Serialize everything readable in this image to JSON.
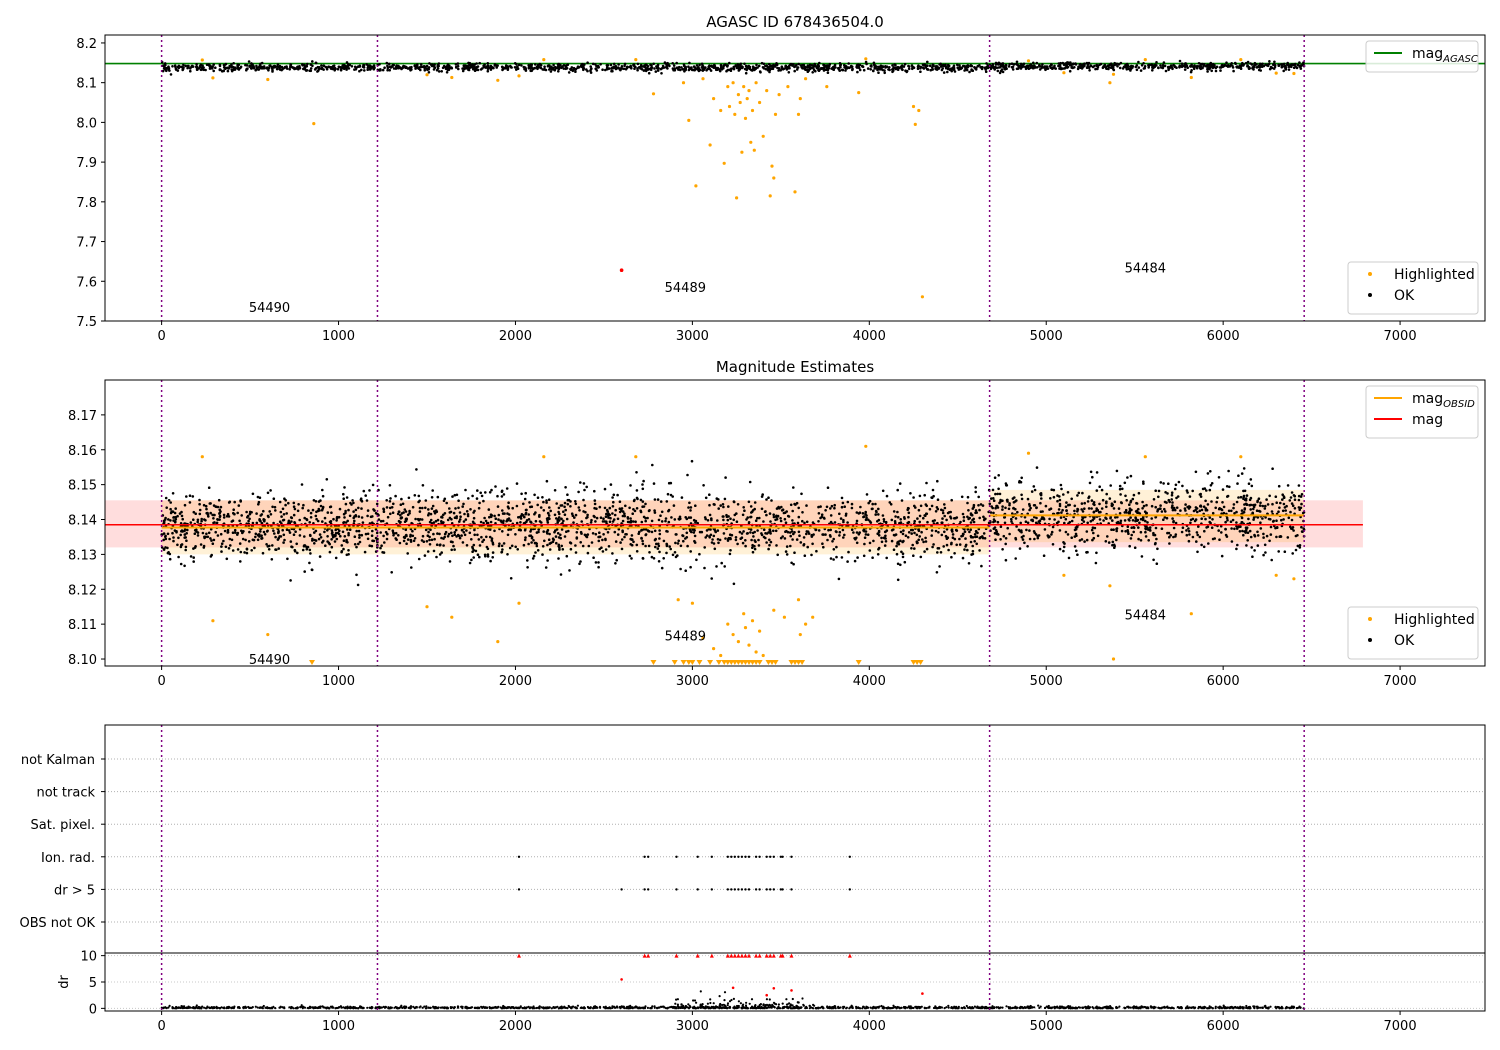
{
  "chart_data": [
    {
      "type": "scatter",
      "title": "AGASC ID 678436504.0",
      "xlabel": "",
      "ylabel": "",
      "xlim": [
        -320,
        7480
      ],
      "ylim": [
        7.5,
        8.22
      ],
      "xticks": [
        0,
        1000,
        2000,
        3000,
        4000,
        5000,
        6000,
        7000
      ],
      "yticks": [
        7.5,
        7.6,
        7.7,
        7.8,
        7.9,
        8.0,
        8.1,
        8.2
      ],
      "ytick_labels": [
        "7.5",
        "7.6",
        "7.7",
        "7.8",
        "7.9",
        "8.0",
        "8.1",
        "8.2"
      ],
      "obsid_boundaries": [
        0,
        1220,
        4680,
        6458
      ],
      "obsid_labels": [
        {
          "text": "54490",
          "x": 610,
          "y": 7.535
        },
        {
          "text": "54489",
          "x": 2960,
          "y": 7.585
        },
        {
          "text": "54484",
          "x": 5560,
          "y": 7.635
        }
      ],
      "lines": [
        {
          "name": "mag_AGASC",
          "color": "#008000",
          "x": [
            -320,
            7480
          ],
          "y": [
            8.148,
            8.148
          ]
        }
      ],
      "ok_band": {
        "segments": [
          {
            "x0": 0,
            "x1": 4680,
            "center": 8.138,
            "spread": 0.009
          },
          {
            "x0": 4680,
            "x1": 6458,
            "center": 8.141,
            "spread": 0.009
          }
        ]
      },
      "highlighted": [
        [
          230,
          8.157
        ],
        [
          290,
          8.112
        ],
        [
          600,
          8.108
        ],
        [
          860,
          7.997
        ],
        [
          1500,
          8.12
        ],
        [
          1640,
          8.113
        ],
        [
          1900,
          8.106
        ],
        [
          2020,
          8.117
        ],
        [
          2160,
          8.158
        ],
        [
          2600,
          7.628
        ],
        [
          2680,
          8.158
        ],
        [
          2780,
          8.072
        ],
        [
          2950,
          8.1
        ],
        [
          2980,
          8.005
        ],
        [
          3020,
          7.84
        ],
        [
          3060,
          8.11
        ],
        [
          3100,
          7.943
        ],
        [
          3120,
          8.06
        ],
        [
          3160,
          8.03
        ],
        [
          3180,
          7.897
        ],
        [
          3200,
          8.09
        ],
        [
          3210,
          8.04
        ],
        [
          3230,
          8.1
        ],
        [
          3240,
          8.02
        ],
        [
          3250,
          7.81
        ],
        [
          3260,
          8.07
        ],
        [
          3270,
          8.05
        ],
        [
          3280,
          7.925
        ],
        [
          3290,
          8.09
        ],
        [
          3300,
          8.01
        ],
        [
          3310,
          8.06
        ],
        [
          3320,
          8.08
        ],
        [
          3330,
          7.95
        ],
        [
          3340,
          8.03
        ],
        [
          3350,
          7.93
        ],
        [
          3360,
          8.1
        ],
        [
          3380,
          8.05
        ],
        [
          3400,
          7.965
        ],
        [
          3420,
          8.08
        ],
        [
          3440,
          7.815
        ],
        [
          3450,
          7.89
        ],
        [
          3460,
          7.86
        ],
        [
          3470,
          8.02
        ],
        [
          3490,
          8.07
        ],
        [
          3540,
          8.09
        ],
        [
          3580,
          7.825
        ],
        [
          3600,
          8.02
        ],
        [
          3610,
          8.06
        ],
        [
          3640,
          8.11
        ],
        [
          3760,
          8.09
        ],
        [
          3940,
          8.075
        ],
        [
          3980,
          8.16
        ],
        [
          4250,
          8.04
        ],
        [
          4260,
          7.995
        ],
        [
          4280,
          8.03
        ],
        [
          4300,
          7.561
        ],
        [
          4900,
          8.155
        ],
        [
          5100,
          8.125
        ],
        [
          5360,
          8.1
        ],
        [
          5380,
          8.121
        ],
        [
          5560,
          8.158
        ],
        [
          5820,
          8.113
        ],
        [
          6100,
          8.158
        ],
        [
          6300,
          8.124
        ],
        [
          6400,
          8.123
        ]
      ],
      "red_points": [
        [
          2600,
          7.628
        ]
      ],
      "legends": [
        {
          "placement": "upper-right",
          "entries": [
            {
              "label": "mag",
              "sub": "AGASC",
              "kind": "line",
              "color": "#008000"
            }
          ]
        },
        {
          "placement": "lower-right",
          "entries": [
            {
              "label": "Highlighted",
              "kind": "dot",
              "color": "#ffa500"
            },
            {
              "label": "OK",
              "kind": "dot",
              "color": "#000000"
            }
          ]
        }
      ]
    },
    {
      "type": "scatter",
      "title": "Magnitude Estimates",
      "xlabel": "",
      "ylabel": "",
      "xlim": [
        -320,
        7480
      ],
      "ylim": [
        8.098,
        8.18
      ],
      "xticks": [
        0,
        1000,
        2000,
        3000,
        4000,
        5000,
        6000,
        7000
      ],
      "yticks": [
        8.1,
        8.11,
        8.12,
        8.13,
        8.14,
        8.15,
        8.16,
        8.17
      ],
      "ytick_labels": [
        "8.10",
        "8.11",
        "8.12",
        "8.13",
        "8.14",
        "8.15",
        "8.16",
        "8.17"
      ],
      "obsid_boundaries": [
        0,
        1220,
        4680,
        6458
      ],
      "obsid_labels": [
        {
          "text": "54490",
          "x": 610,
          "y": 8.1
        }
      ],
      "lines": [
        {
          "name": "mag",
          "color": "#ff0000",
          "x": [
            -320,
            6790
          ],
          "y": [
            8.1385,
            8.1385
          ]
        },
        {
          "name": "mag_OBSID",
          "color": "#ffa500",
          "segments": [
            {
              "x0": 0,
              "x1": 4680,
              "y": 8.1377
            },
            {
              "x0": 4680,
              "x1": 6458,
              "y": 8.1412
            }
          ]
        }
      ],
      "bands": [
        {
          "color": "#ff000022",
          "x0": -320,
          "x1": 6790,
          "y0": 8.132,
          "y1": 8.1455
        },
        {
          "color": "#ffa50028",
          "x0": 0,
          "x1": 4680,
          "y0": 8.13,
          "y1": 8.1455
        },
        {
          "color": "#ffa50028",
          "x0": 4680,
          "x1": 6458,
          "y0": 8.1335,
          "y1": 8.1485
        }
      ],
      "ok_band": {
        "segments": [
          {
            "x0": 0,
            "x1": 4680,
            "center": 8.138,
            "spread": 0.009
          },
          {
            "x0": 4680,
            "x1": 6458,
            "center": 8.141,
            "spread": 0.009
          }
        ]
      },
      "highlighted": [
        [
          230,
          8.158
        ],
        [
          290,
          8.111
        ],
        [
          600,
          8.107
        ],
        [
          1500,
          8.115
        ],
        [
          1640,
          8.112
        ],
        [
          1900,
          8.105
        ],
        [
          2020,
          8.116
        ],
        [
          2160,
          8.158
        ],
        [
          2680,
          8.158
        ],
        [
          2920,
          8.117
        ],
        [
          3000,
          8.116
        ],
        [
          3060,
          8.106
        ],
        [
          3120,
          8.103
        ],
        [
          3160,
          8.101
        ],
        [
          3200,
          8.11
        ],
        [
          3230,
          8.107
        ],
        [
          3260,
          8.105
        ],
        [
          3290,
          8.113
        ],
        [
          3300,
          8.109
        ],
        [
          3320,
          8.104
        ],
        [
          3340,
          8.111
        ],
        [
          3360,
          8.102
        ],
        [
          3380,
          8.108
        ],
        [
          3400,
          8.101
        ],
        [
          3460,
          8.114
        ],
        [
          3520,
          8.112
        ],
        [
          3600,
          8.117
        ],
        [
          3610,
          8.107
        ],
        [
          3640,
          8.11
        ],
        [
          3680,
          8.112
        ],
        [
          3980,
          8.161
        ],
        [
          4900,
          8.159
        ],
        [
          5100,
          8.124
        ],
        [
          5360,
          8.121
        ],
        [
          5380,
          8.1
        ],
        [
          5560,
          8.158
        ],
        [
          5820,
          8.113
        ],
        [
          6100,
          8.158
        ],
        [
          6300,
          8.124
        ],
        [
          6400,
          8.123
        ]
      ],
      "offscale_low": [
        850,
        2780,
        2900,
        2950,
        2980,
        3000,
        3040,
        3100,
        3150,
        3180,
        3200,
        3220,
        3240,
        3260,
        3280,
        3300,
        3320,
        3340,
        3360,
        3380,
        3430,
        3450,
        3470,
        3560,
        3580,
        3600,
        3620,
        3940,
        4250,
        4270,
        4290
      ],
      "legends": [
        {
          "placement": "upper-right",
          "entries": [
            {
              "label": "mag",
              "sub": "OBSID",
              "kind": "line",
              "color": "#ffa500"
            },
            {
              "label": "mag",
              "sub": "",
              "kind": "line",
              "color": "#ff0000"
            }
          ]
        },
        {
          "placement": "lower-right",
          "entries": [
            {
              "label": "Highlighted",
              "kind": "dot",
              "color": "#ffa500"
            },
            {
              "label": "OK",
              "kind": "dot",
              "color": "#000000"
            }
          ]
        }
      ]
    },
    {
      "type": "scatter",
      "title": "",
      "xlabel": "",
      "ylabel": "",
      "xlim": [
        -320,
        7480
      ],
      "obsid_boundaries": [
        0,
        1220,
        4680,
        6458
      ],
      "flag_rows": [
        "not Kalman",
        "not track",
        "Sat. pixel.",
        "Ion. rad.",
        "dr > 5",
        "OBS not OK"
      ],
      "flag_points": {
        "Ion. rad.": [
          2020,
          2730,
          2750,
          2910,
          3030,
          3110,
          3200,
          3220,
          3240,
          3260,
          3280,
          3300,
          3320,
          3360,
          3380,
          3420,
          3440,
          3460,
          3500,
          3510,
          3560,
          3890
        ],
        "dr > 5": [
          2020,
          2600,
          2730,
          2750,
          2910,
          3030,
          3110,
          3200,
          3220,
          3240,
          3260,
          3280,
          3300,
          3320,
          3360,
          3380,
          3420,
          3440,
          3460,
          3500,
          3510,
          3560,
          3890
        ]
      }
    },
    {
      "type": "scatter",
      "title": "",
      "xlabel": "",
      "ylabel": "dr",
      "xlim": [
        -320,
        7480
      ],
      "ylim": [
        -0.5,
        10.5
      ],
      "xticks": [
        0,
        1000,
        2000,
        3000,
        4000,
        5000,
        6000,
        7000
      ],
      "yticks": [
        0,
        5,
        10
      ],
      "obsid_boundaries": [
        0,
        1220,
        4680,
        6458
      ],
      "dr_clipped": [
        2020,
        2730,
        2750,
        2910,
        3030,
        3110,
        3200,
        3220,
        3240,
        3260,
        3280,
        3300,
        3320,
        3360,
        3380,
        3420,
        3440,
        3460,
        3500,
        3510,
        3560,
        3890
      ],
      "dr_outliers": [
        [
          2600,
          5.5
        ],
        [
          3230,
          3.9
        ],
        [
          3460,
          3.8
        ],
        [
          3560,
          3.4
        ],
        [
          3420,
          2.5
        ],
        [
          4300,
          2.8
        ]
      ]
    }
  ]
}
